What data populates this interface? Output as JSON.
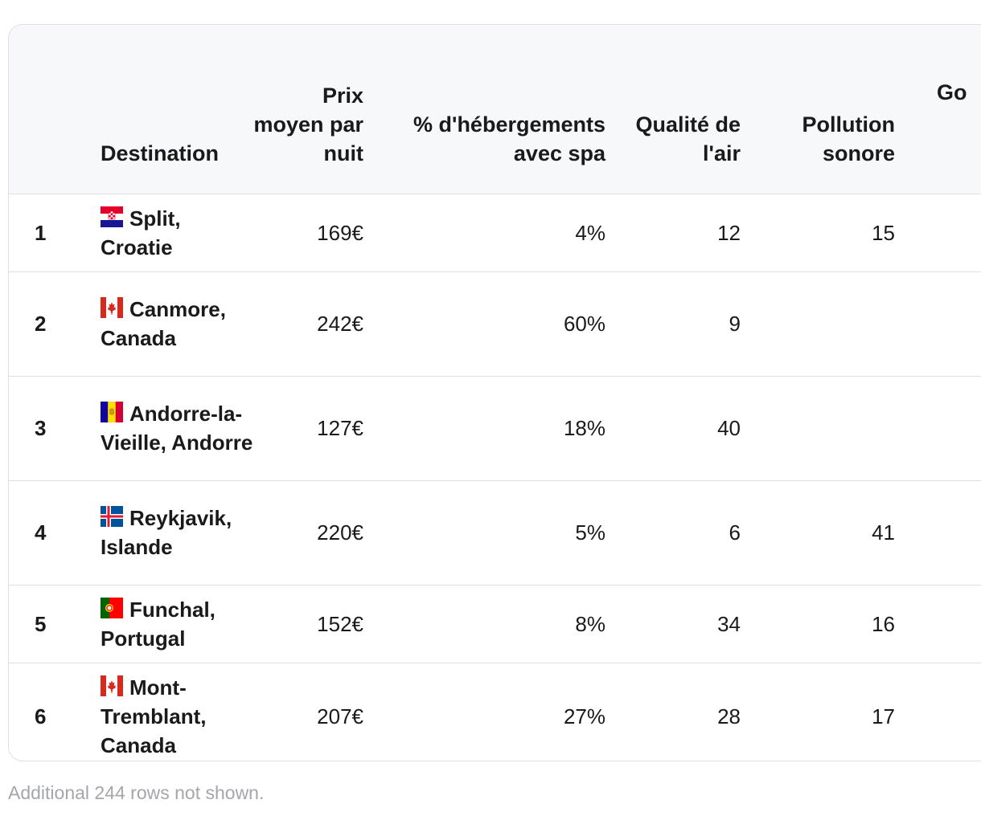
{
  "table": {
    "columns": [
      {
        "key": "rank",
        "label": ""
      },
      {
        "key": "destination",
        "label": "Destination"
      },
      {
        "key": "price",
        "label": "Prix moyen par nuit"
      },
      {
        "key": "spa",
        "label": "% d'hébergements avec spa"
      },
      {
        "key": "air",
        "label": "Qualité de l'air"
      },
      {
        "key": "noise",
        "label": "Pollution sonore"
      },
      {
        "key": "extra",
        "label": "Go"
      }
    ],
    "rows": [
      {
        "rank": "1",
        "flag": "croatia-flag-icon",
        "destination": "Split, Croatie",
        "price": "169€",
        "spa": "4%",
        "air": "12",
        "noise": "15"
      },
      {
        "rank": "2",
        "flag": "canada-flag-icon",
        "destination": "Canmore, Canada",
        "price": "242€",
        "spa": "60%",
        "air": "9",
        "noise": ""
      },
      {
        "rank": "3",
        "flag": "andorra-flag-icon",
        "destination": "Andorre-la-Vieille, Andorre",
        "price": "127€",
        "spa": "18%",
        "air": "40",
        "noise": ""
      },
      {
        "rank": "4",
        "flag": "iceland-flag-icon",
        "destination": "Reykjavik, Islande",
        "price": "220€",
        "spa": "5%",
        "air": "6",
        "noise": "41"
      },
      {
        "rank": "5",
        "flag": "portugal-flag-icon",
        "destination": "Funchal, Portugal",
        "price": "152€",
        "spa": "8%",
        "air": "34",
        "noise": "16"
      },
      {
        "rank": "6",
        "flag": "canada-flag-icon",
        "destination": "Mont-Tremblant, Canada",
        "price": "207€",
        "spa": "27%",
        "air": "28",
        "noise": "17"
      }
    ]
  },
  "footnote": "Additional 244 rows not shown."
}
